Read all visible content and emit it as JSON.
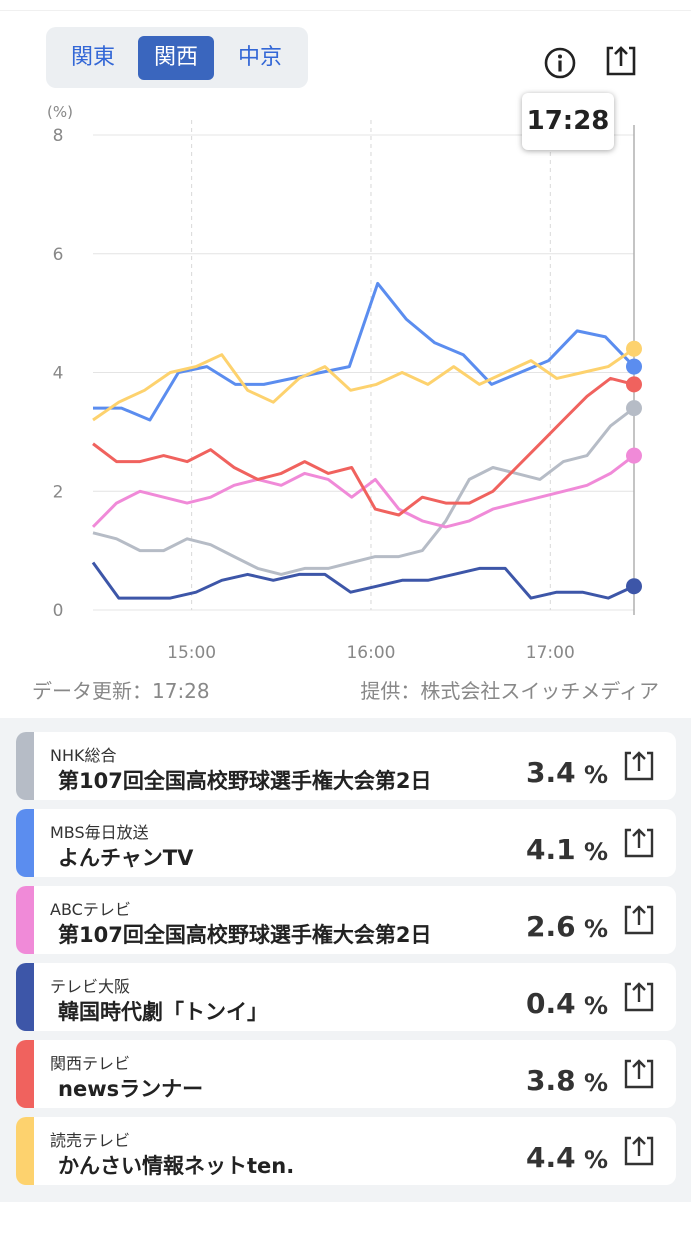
{
  "region_tabs": [
    {
      "label": "関東",
      "active": false
    },
    {
      "label": "関西",
      "active": true
    },
    {
      "label": "中京",
      "active": false
    }
  ],
  "tooltip_time": "17:28",
  "chart_data": {
    "type": "line",
    "y_unit_label": "(%)",
    "yticks": [
      "8",
      "6",
      "4",
      "2",
      "0"
    ],
    "ylim": [
      0,
      8
    ],
    "xticks": [
      "15:00",
      "16:00",
      "17:00"
    ],
    "x_range": [
      "14:27",
      "17:28"
    ],
    "grid": true,
    "series": [
      {
        "name": "NHK総合",
        "color": "#b6bcc6",
        "values": [
          1.3,
          1.2,
          1.0,
          1.0,
          1.2,
          1.1,
          0.9,
          0.7,
          0.6,
          0.7,
          0.7,
          0.8,
          0.9,
          0.9,
          1.0,
          1.5,
          2.2,
          2.4,
          2.3,
          2.2,
          2.5,
          2.6,
          3.1,
          3.4
        ]
      },
      {
        "name": "MBS毎日放送",
        "color": "#5b8def",
        "values": [
          3.4,
          3.4,
          3.2,
          4.0,
          4.1,
          3.8,
          3.8,
          3.9,
          4.0,
          4.1,
          5.5,
          4.9,
          4.5,
          4.3,
          3.8,
          4.0,
          4.2,
          4.7,
          4.6,
          4.1
        ]
      },
      {
        "name": "ABCテレビ",
        "color": "#f08ad8",
        "values": [
          1.4,
          1.8,
          2.0,
          1.9,
          1.8,
          1.9,
          2.1,
          2.2,
          2.1,
          2.3,
          2.2,
          1.9,
          2.2,
          1.7,
          1.5,
          1.4,
          1.5,
          1.7,
          1.8,
          1.9,
          2.0,
          2.1,
          2.3,
          2.6
        ]
      },
      {
        "name": "テレビ大阪",
        "color": "#3d56a8",
        "values": [
          0.8,
          0.2,
          0.2,
          0.2,
          0.3,
          0.5,
          0.6,
          0.5,
          0.6,
          0.6,
          0.3,
          0.4,
          0.5,
          0.5,
          0.6,
          0.7,
          0.7,
          0.2,
          0.3,
          0.3,
          0.2,
          0.4
        ]
      },
      {
        "name": "関西テレビ",
        "color": "#f0625e",
        "values": [
          2.8,
          2.5,
          2.5,
          2.6,
          2.5,
          2.7,
          2.4,
          2.2,
          2.3,
          2.5,
          2.3,
          2.4,
          1.7,
          1.6,
          1.9,
          1.8,
          1.8,
          2.0,
          2.4,
          2.8,
          3.2,
          3.6,
          3.9,
          3.8
        ]
      },
      {
        "name": "読売テレビ",
        "color": "#fdd26e",
        "values": [
          3.2,
          3.5,
          3.7,
          4.0,
          4.1,
          4.3,
          3.7,
          3.5,
          3.9,
          4.1,
          3.7,
          3.8,
          4.0,
          3.8,
          4.1,
          3.8,
          4.0,
          4.2,
          3.9,
          4.0,
          4.1,
          4.4
        ]
      }
    ]
  },
  "data_updated": "データ更新：17:28",
  "provider": "提供：株式会社スイッチメディア",
  "unit": "%",
  "channels": [
    {
      "channel": "NHK総合",
      "program": "第107回全国高校野球選手権大会第2日",
      "rating": "3.4",
      "color": "#b6bcc6"
    },
    {
      "channel": "MBS毎日放送",
      "program": "よんチャンTV",
      "rating": "4.1",
      "color": "#5b8def"
    },
    {
      "channel": "ABCテレビ",
      "program": "第107回全国高校野球選手権大会第2日",
      "rating": "2.6",
      "color": "#f08ad8"
    },
    {
      "channel": "テレビ大阪",
      "program": "韓国時代劇「トンイ」",
      "rating": "0.4",
      "color": "#3d56a8"
    },
    {
      "channel": "関西テレビ",
      "program": "newsランナー",
      "rating": "3.8",
      "color": "#f0625e"
    },
    {
      "channel": "読売テレビ",
      "program": "かんさい情報ネットten.",
      "rating": "4.4",
      "color": "#fdd26e"
    }
  ]
}
